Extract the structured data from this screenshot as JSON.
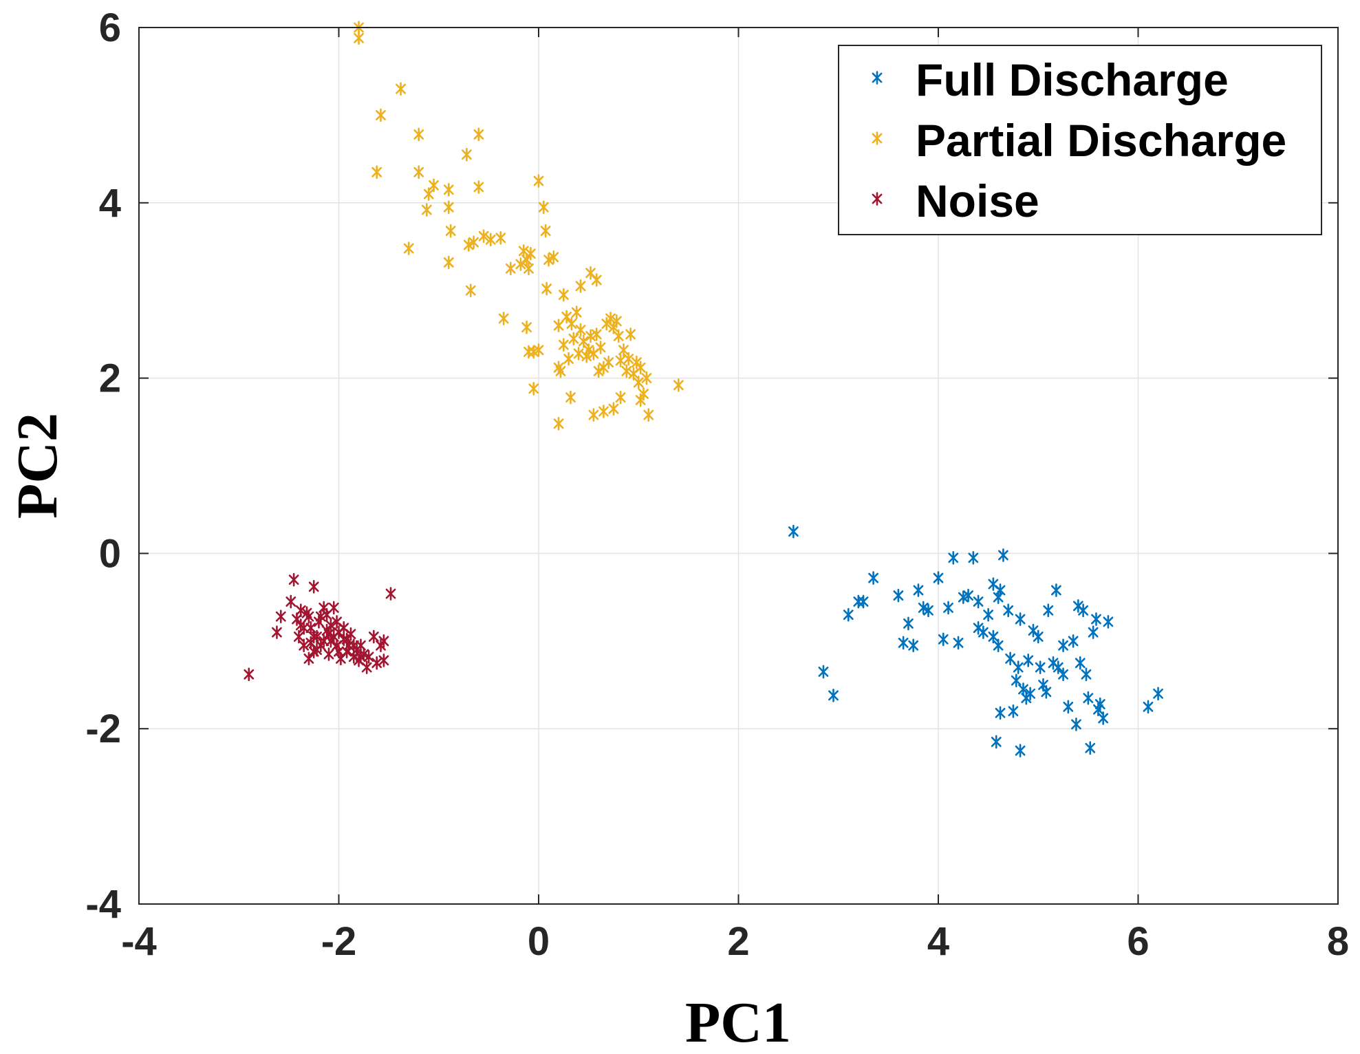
{
  "chart_data": {
    "type": "scatter",
    "title": "",
    "xlabel": "PC1",
    "ylabel": "PC2",
    "xlim": [
      -4,
      8
    ],
    "ylim": [
      -4,
      6
    ],
    "xticks": [
      -4,
      -2,
      0,
      2,
      4,
      6,
      8
    ],
    "yticks": [
      -4,
      -2,
      0,
      2,
      4,
      6
    ],
    "xtick_labels": [
      "-4",
      "-2",
      "0",
      "2",
      "4",
      "6",
      "8"
    ],
    "ytick_labels": [
      "-4",
      "-2",
      "0",
      "2",
      "4",
      "6"
    ],
    "grid": true,
    "legend_position": "top-right",
    "marker": "asterisk",
    "series": [
      {
        "name": "Full Discharge",
        "color": "#0072BD",
        "points": [
          [
            2.55,
            0.25
          ],
          [
            2.85,
            -1.35
          ],
          [
            2.95,
            -1.62
          ],
          [
            3.1,
            -0.7
          ],
          [
            3.2,
            -0.55
          ],
          [
            3.25,
            -0.55
          ],
          [
            3.35,
            -0.28
          ],
          [
            3.6,
            -0.48
          ],
          [
            3.65,
            -1.02
          ],
          [
            3.7,
            -0.8
          ],
          [
            3.75,
            -1.05
          ],
          [
            3.8,
            -0.42
          ],
          [
            3.85,
            -0.62
          ],
          [
            3.9,
            -0.65
          ],
          [
            4.0,
            -0.28
          ],
          [
            4.05,
            -0.98
          ],
          [
            4.1,
            -0.62
          ],
          [
            4.15,
            -0.05
          ],
          [
            4.2,
            -1.02
          ],
          [
            4.25,
            -0.5
          ],
          [
            4.3,
            -0.48
          ],
          [
            4.35,
            -0.05
          ],
          [
            4.4,
            -0.55
          ],
          [
            4.4,
            -0.85
          ],
          [
            4.45,
            -0.9
          ],
          [
            4.5,
            -0.7
          ],
          [
            4.55,
            -0.35
          ],
          [
            4.55,
            -0.95
          ],
          [
            4.6,
            -0.5
          ],
          [
            4.6,
            -1.05
          ],
          [
            4.62,
            -0.42
          ],
          [
            4.65,
            -0.02
          ],
          [
            4.7,
            -0.65
          ],
          [
            4.72,
            -1.2
          ],
          [
            4.75,
            -1.8
          ],
          [
            4.78,
            -1.45
          ],
          [
            4.8,
            -1.3
          ],
          [
            4.82,
            -0.75
          ],
          [
            4.85,
            -1.55
          ],
          [
            4.88,
            -1.65
          ],
          [
            4.9,
            -1.22
          ],
          [
            4.92,
            -1.6
          ],
          [
            4.95,
            -0.88
          ],
          [
            5.0,
            -0.95
          ],
          [
            5.02,
            -1.3
          ],
          [
            5.05,
            -1.5
          ],
          [
            5.08,
            -1.58
          ],
          [
            5.1,
            -0.65
          ],
          [
            5.15,
            -1.25
          ],
          [
            5.18,
            -0.42
          ],
          [
            5.2,
            -1.3
          ],
          [
            5.25,
            -1.38
          ],
          [
            5.25,
            -1.05
          ],
          [
            5.3,
            -1.75
          ],
          [
            5.35,
            -1.0
          ],
          [
            5.38,
            -1.95
          ],
          [
            5.4,
            -0.6
          ],
          [
            5.42,
            -1.25
          ],
          [
            5.45,
            -0.65
          ],
          [
            5.48,
            -1.38
          ],
          [
            5.5,
            -1.65
          ],
          [
            5.52,
            -2.22
          ],
          [
            5.55,
            -0.9
          ],
          [
            5.58,
            -0.75
          ],
          [
            5.6,
            -1.78
          ],
          [
            5.62,
            -1.72
          ],
          [
            5.65,
            -1.88
          ],
          [
            5.7,
            -0.78
          ],
          [
            6.1,
            -1.75
          ],
          [
            6.2,
            -1.6
          ],
          [
            4.58,
            -2.15
          ],
          [
            4.82,
            -2.25
          ],
          [
            4.62,
            -1.82
          ]
        ]
      },
      {
        "name": "Partial Discharge",
        "color": "#EDB120",
        "points": [
          [
            -1.8,
            6.0
          ],
          [
            -1.8,
            5.88
          ],
          [
            -1.38,
            5.3
          ],
          [
            -1.58,
            5.0
          ],
          [
            -1.62,
            4.35
          ],
          [
            -1.2,
            4.78
          ],
          [
            -0.6,
            4.78
          ],
          [
            -1.2,
            4.35
          ],
          [
            -1.1,
            4.1
          ],
          [
            -1.05,
            4.2
          ],
          [
            -0.9,
            4.15
          ],
          [
            -0.6,
            4.18
          ],
          [
            -0.72,
            4.55
          ],
          [
            -1.12,
            3.92
          ],
          [
            -0.9,
            3.95
          ],
          [
            -1.3,
            3.48
          ],
          [
            -0.88,
            3.68
          ],
          [
            -0.7,
            3.52
          ],
          [
            -0.65,
            3.55
          ],
          [
            -0.55,
            3.62
          ],
          [
            -0.48,
            3.58
          ],
          [
            -0.38,
            3.6
          ],
          [
            -0.9,
            3.32
          ],
          [
            -0.68,
            3.0
          ],
          [
            -0.28,
            3.25
          ],
          [
            -0.18,
            3.3
          ],
          [
            -0.15,
            3.45
          ],
          [
            -0.12,
            3.35
          ],
          [
            -0.08,
            3.42
          ],
          [
            -0.1,
            3.25
          ],
          [
            0.0,
            4.25
          ],
          [
            0.05,
            3.95
          ],
          [
            0.07,
            3.68
          ],
          [
            0.1,
            3.35
          ],
          [
            0.15,
            3.38
          ],
          [
            0.08,
            3.02
          ],
          [
            0.25,
            2.95
          ],
          [
            0.42,
            3.05
          ],
          [
            0.52,
            3.2
          ],
          [
            0.58,
            3.12
          ],
          [
            -0.35,
            2.68
          ],
          [
            -0.12,
            2.58
          ],
          [
            -0.1,
            2.3
          ],
          [
            0.0,
            2.32
          ],
          [
            -0.05,
            2.3
          ],
          [
            0.2,
            2.6
          ],
          [
            0.25,
            2.38
          ],
          [
            0.28,
            2.7
          ],
          [
            0.3,
            2.22
          ],
          [
            0.33,
            2.62
          ],
          [
            0.35,
            2.45
          ],
          [
            0.38,
            2.75
          ],
          [
            0.4,
            2.28
          ],
          [
            0.42,
            2.55
          ],
          [
            0.45,
            2.42
          ],
          [
            0.48,
            2.25
          ],
          [
            0.5,
            2.32
          ],
          [
            0.52,
            2.48
          ],
          [
            0.55,
            2.28
          ],
          [
            0.58,
            2.5
          ],
          [
            0.6,
            2.08
          ],
          [
            0.62,
            2.35
          ],
          [
            0.65,
            2.12
          ],
          [
            0.68,
            2.62
          ],
          [
            0.7,
            2.18
          ],
          [
            0.72,
            2.68
          ],
          [
            0.75,
            2.58
          ],
          [
            0.78,
            2.65
          ],
          [
            0.8,
            2.48
          ],
          [
            0.82,
            2.2
          ],
          [
            0.85,
            2.32
          ],
          [
            0.88,
            2.08
          ],
          [
            0.9,
            2.22
          ],
          [
            0.92,
            2.5
          ],
          [
            0.95,
            2.05
          ],
          [
            0.98,
            2.18
          ],
          [
            1.0,
            1.95
          ],
          [
            1.02,
            2.12
          ],
          [
            1.05,
            1.82
          ],
          [
            1.08,
            2.0
          ],
          [
            0.2,
            2.12
          ],
          [
            0.22,
            2.08
          ],
          [
            -0.05,
            1.88
          ],
          [
            0.32,
            1.78
          ],
          [
            0.55,
            1.58
          ],
          [
            0.65,
            1.62
          ],
          [
            0.75,
            1.65
          ],
          [
            0.82,
            1.78
          ],
          [
            1.1,
            1.58
          ],
          [
            0.2,
            1.48
          ],
          [
            1.4,
            1.92
          ],
          [
            1.02,
            1.75
          ]
        ]
      },
      {
        "name": "Noise",
        "color": "#A2142F",
        "points": [
          [
            -2.9,
            -1.38
          ],
          [
            -2.62,
            -0.9
          ],
          [
            -2.58,
            -0.72
          ],
          [
            -2.48,
            -0.55
          ],
          [
            -2.45,
            -0.3
          ],
          [
            -2.42,
            -0.75
          ],
          [
            -2.4,
            -0.95
          ],
          [
            -2.38,
            -0.82
          ],
          [
            -2.35,
            -1.05
          ],
          [
            -2.32,
            -0.68
          ],
          [
            -2.3,
            -1.2
          ],
          [
            -2.28,
            -0.85
          ],
          [
            -2.25,
            -0.38
          ],
          [
            -2.25,
            -0.95
          ],
          [
            -2.22,
            -1.1
          ],
          [
            -2.2,
            -0.78
          ],
          [
            -2.18,
            -0.72
          ],
          [
            -2.15,
            -1.0
          ],
          [
            -2.12,
            -0.88
          ],
          [
            -2.1,
            -1.15
          ],
          [
            -2.08,
            -0.82
          ],
          [
            -2.05,
            -0.95
          ],
          [
            -2.05,
            -0.62
          ],
          [
            -2.02,
            -1.05
          ],
          [
            -2.0,
            -0.9
          ],
          [
            -1.98,
            -1.2
          ],
          [
            -1.95,
            -0.98
          ],
          [
            -1.92,
            -1.12
          ],
          [
            -1.9,
            -1.05
          ],
          [
            -1.88,
            -0.92
          ],
          [
            -1.85,
            -1.18
          ],
          [
            -1.82,
            -1.1
          ],
          [
            -1.8,
            -1.22
          ],
          [
            -1.78,
            -1.05
          ],
          [
            -1.75,
            -1.15
          ],
          [
            -1.72,
            -1.3
          ],
          [
            -1.7,
            -1.18
          ],
          [
            -1.65,
            -0.95
          ],
          [
            -1.62,
            -1.25
          ],
          [
            -1.58,
            -1.05
          ],
          [
            -1.55,
            -1.0
          ],
          [
            -1.55,
            -1.22
          ],
          [
            -1.48,
            -0.46
          ],
          [
            -2.38,
            -0.65
          ],
          [
            -2.3,
            -0.72
          ],
          [
            -2.15,
            -0.62
          ],
          [
            -2.12,
            -0.7
          ],
          [
            -2.02,
            -0.78
          ],
          [
            -1.95,
            -0.85
          ],
          [
            -2.22,
            -0.95
          ],
          [
            -2.18,
            -1.05
          ],
          [
            -2.08,
            -1.0
          ],
          [
            -2.0,
            -1.12
          ],
          [
            -1.92,
            -0.98
          ],
          [
            -2.28,
            -1.02
          ],
          [
            -2.35,
            -0.85
          ],
          [
            -2.1,
            -0.92
          ],
          [
            -1.85,
            -1.05
          ],
          [
            -1.78,
            -1.18
          ],
          [
            -2.25,
            -1.12
          ]
        ]
      }
    ]
  }
}
